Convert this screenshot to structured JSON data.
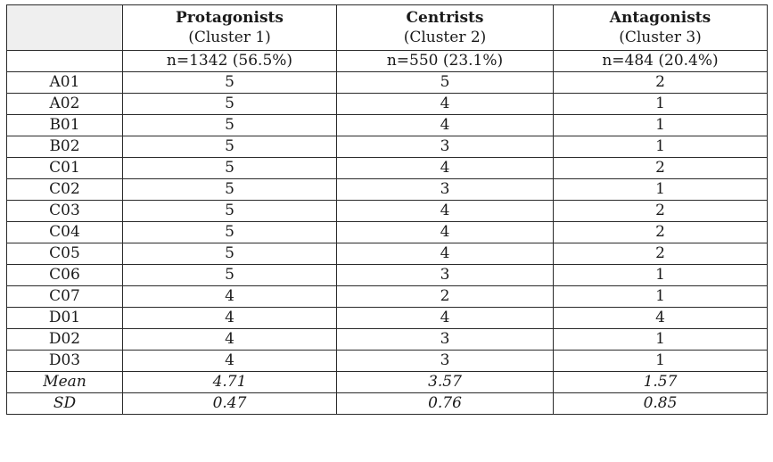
{
  "clusters": [
    {
      "name": "Protagonists",
      "sub": "(Cluster 1)",
      "n": "n=1342 (56.5%)"
    },
    {
      "name": "Centrists",
      "sub": "(Cluster 2)",
      "n": "n=550 (23.1%)"
    },
    {
      "name": "Antagonists",
      "sub": "(Cluster 3)",
      "n": "n=484 (20.4%)"
    }
  ],
  "rows": [
    {
      "label": "A01",
      "v": [
        "5",
        "5",
        "2"
      ]
    },
    {
      "label": "A02",
      "v": [
        "5",
        "4",
        "1"
      ]
    },
    {
      "label": "B01",
      "v": [
        "5",
        "4",
        "1"
      ]
    },
    {
      "label": "B02",
      "v": [
        "5",
        "3",
        "1"
      ]
    },
    {
      "label": "C01",
      "v": [
        "5",
        "4",
        "2"
      ]
    },
    {
      "label": "C02",
      "v": [
        "5",
        "3",
        "1"
      ]
    },
    {
      "label": "C03",
      "v": [
        "5",
        "4",
        "2"
      ]
    },
    {
      "label": "C04",
      "v": [
        "5",
        "4",
        "2"
      ]
    },
    {
      "label": "C05",
      "v": [
        "5",
        "4",
        "2"
      ]
    },
    {
      "label": "C06",
      "v": [
        "5",
        "3",
        "1"
      ]
    },
    {
      "label": "C07",
      "v": [
        "4",
        "2",
        "1"
      ]
    },
    {
      "label": "D01",
      "v": [
        "4",
        "4",
        "4"
      ]
    },
    {
      "label": "D02",
      "v": [
        "4",
        "3",
        "1"
      ]
    },
    {
      "label": "D03",
      "v": [
        "4",
        "3",
        "1"
      ]
    }
  ],
  "stats": [
    {
      "label": "Mean",
      "v": [
        "4.71",
        "3.57",
        "1.57"
      ]
    },
    {
      "label": "SD",
      "v": [
        "0.47",
        "0.76",
        "0.85"
      ]
    }
  ]
}
